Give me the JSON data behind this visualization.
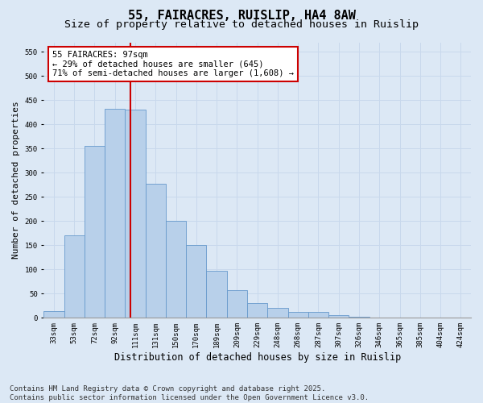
{
  "title1": "55, FAIRACRES, RUISLIP, HA4 8AW",
  "title2": "Size of property relative to detached houses in Ruislip",
  "xlabel": "Distribution of detached houses by size in Ruislip",
  "ylabel": "Number of detached properties",
  "categories": [
    "33sqm",
    "53sqm",
    "72sqm",
    "92sqm",
    "111sqm",
    "131sqm",
    "150sqm",
    "170sqm",
    "189sqm",
    "209sqm",
    "229sqm",
    "248sqm",
    "268sqm",
    "287sqm",
    "307sqm",
    "326sqm",
    "346sqm",
    "365sqm",
    "385sqm",
    "404sqm",
    "424sqm"
  ],
  "values": [
    14,
    170,
    355,
    432,
    430,
    278,
    200,
    150,
    98,
    58,
    30,
    20,
    13,
    12,
    5,
    3,
    1,
    1,
    0,
    0,
    0
  ],
  "bar_color": "#b8d0ea",
  "bar_edge_color": "#6699cc",
  "annotation_line1": "55 FAIRACRES: 97sqm",
  "annotation_line2": "← 29% of detached houses are smaller (645)",
  "annotation_line3": "71% of semi-detached houses are larger (1,608) →",
  "annotation_box_facecolor": "#ffffff",
  "annotation_box_edgecolor": "#cc0000",
  "red_line_color": "#cc0000",
  "grid_color": "#c8d8ec",
  "background_color": "#dce8f5",
  "ylim": [
    0,
    570
  ],
  "yticks": [
    0,
    50,
    100,
    150,
    200,
    250,
    300,
    350,
    400,
    450,
    500,
    550
  ],
  "footer_line1": "Contains HM Land Registry data © Crown copyright and database right 2025.",
  "footer_line2": "Contains public sector information licensed under the Open Government Licence v3.0.",
  "title1_fontsize": 11,
  "title2_fontsize": 9.5,
  "xlabel_fontsize": 8.5,
  "ylabel_fontsize": 8,
  "tick_fontsize": 6.5,
  "annotation_fontsize": 7.5,
  "footer_fontsize": 6.5
}
